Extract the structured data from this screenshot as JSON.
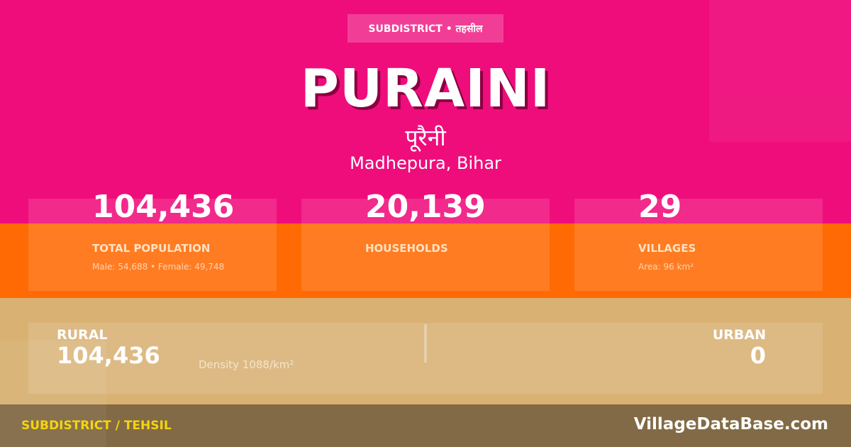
{
  "header": {
    "badge": "SUBDISTRICT • तहसील",
    "title": "PURAINI",
    "title_hindi": "पूरैनी",
    "location": "Madhepura, Bihar"
  },
  "stats": [
    {
      "value": "104,436",
      "label": "TOTAL POPULATION",
      "sub": "Male: 54,688 • Female: 49,748"
    },
    {
      "value": "20,139",
      "label": "HOUSEHOLDS",
      "sub": ""
    },
    {
      "value": "29",
      "label": "VILLAGES",
      "sub": "Area: 96 km²"
    }
  ],
  "rural_urban": {
    "rural_label": "RURAL",
    "rural_value": "104,436",
    "density": "Density 1088/km²",
    "urban_label": "URBAN",
    "urban_value": "0"
  },
  "footer": {
    "category": "SUBDISTRICT / TEHSIL",
    "site": "VillageDataBase.com"
  },
  "colors": {
    "pink": "#ef0d7c",
    "orange": "#ff6a04",
    "tan": "#d9b173",
    "footer": "#816a45",
    "accent_yellow": "#f6d40e"
  }
}
